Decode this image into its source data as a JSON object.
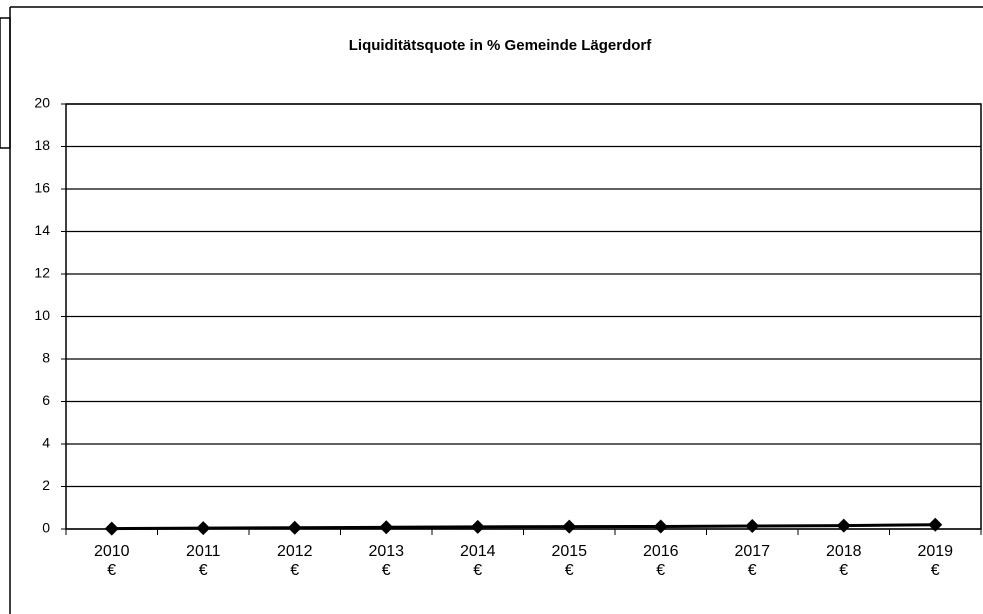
{
  "chart_data": {
    "type": "line",
    "title": "Liquiditätsquote in % Gemeinde Lägerdorf",
    "categories": [
      [
        "2010",
        "€"
      ],
      [
        "2011",
        "€"
      ],
      [
        "2012",
        "€"
      ],
      [
        "2013",
        "€"
      ],
      [
        "2014",
        "€"
      ],
      [
        "2015",
        "€"
      ],
      [
        "2016",
        "€"
      ],
      [
        "2017",
        "€"
      ],
      [
        "2018",
        "€"
      ],
      [
        "2019",
        "€"
      ]
    ],
    "series": [
      {
        "name": "Liquiditätsquote",
        "color": "#000000",
        "values": [
          0.02,
          0.04,
          0.06,
          0.08,
          0.1,
          0.11,
          0.12,
          0.14,
          0.16,
          0.2
        ]
      }
    ],
    "ylim": [
      0,
      20
    ],
    "yticks": [
      0,
      2,
      4,
      6,
      8,
      10,
      12,
      14,
      16,
      18,
      20
    ],
    "grid": true
  }
}
